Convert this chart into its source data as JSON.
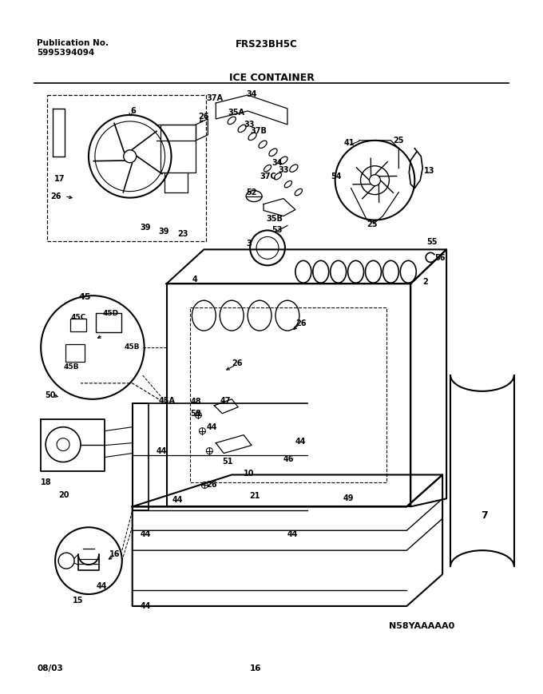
{
  "title": "FRS23BH5C",
  "subtitle": "ICE CONTAINER",
  "pub_label": "Publication No.",
  "pub_number": "5995394094",
  "diagram_code": "N58YAAAAA0",
  "date_code": "08/03",
  "page_number": "16",
  "bg_color": "#ffffff",
  "line_color": "#000000",
  "text_color": "#000000",
  "fig_width": 6.8,
  "fig_height": 8.69,
  "dpi": 100
}
